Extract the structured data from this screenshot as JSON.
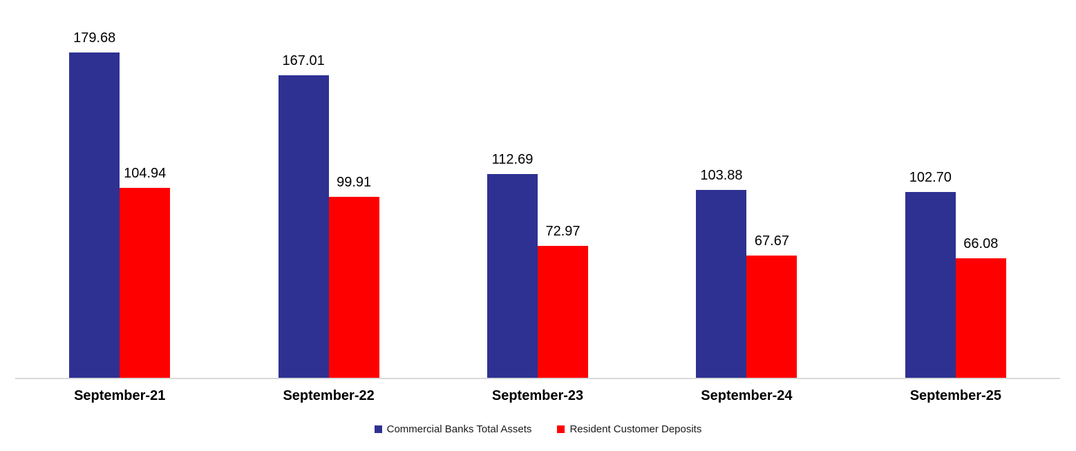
{
  "chart_data": {
    "type": "bar",
    "title": "",
    "categories": [
      "September-21",
      "September-22",
      "September-23",
      "September-24",
      "September-25"
    ],
    "series": [
      {
        "name": "Commercial Banks Total Assets",
        "color": "#2E3192",
        "values": [
          179.68,
          167.01,
          112.69,
          103.88,
          102.7
        ]
      },
      {
        "name": "Resident Customer Deposits",
        "color": "#FF0000",
        "values": [
          104.94,
          99.91,
          72.97,
          67.67,
          66.08
        ]
      }
    ],
    "data_labels": {
      "visible": true,
      "decimals": 2
    },
    "legend": {
      "position": "bottom"
    },
    "axes": {
      "x_axis_line_color": "#D9D9D9",
      "y_axis_visible": false,
      "gridlines": false,
      "ylim": [
        0,
        200
      ]
    }
  }
}
